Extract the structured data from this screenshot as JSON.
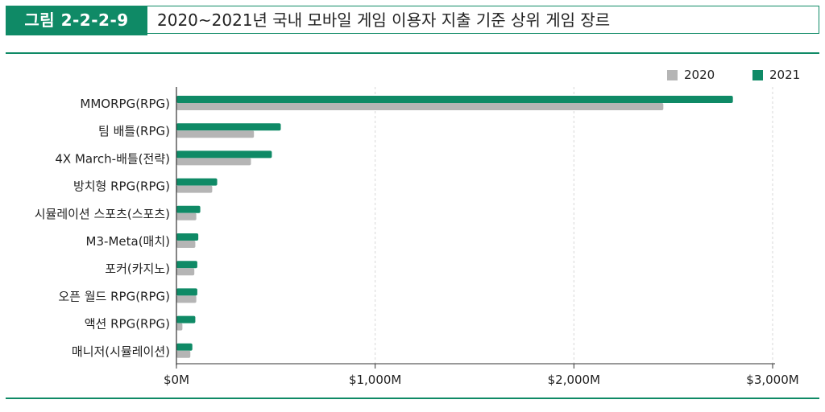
{
  "figure": {
    "tag": "그림 2-2-2-9",
    "title": "2020~2021년 국내 모바일 게임 이용자 지출 기준 상위 게임 장르"
  },
  "colors": {
    "accent": "#0f8a66",
    "s2020": "#b5b5b5",
    "s2021": "#0f8a66"
  },
  "chart_data": {
    "type": "bar",
    "orientation": "horizontal",
    "categories": [
      "MMORPG(RPG)",
      "팀 배틀(RPG)",
      "4X March-배틀(전략)",
      "방치형 RPG(RPG)",
      "시뮬레이션 스포츠(스포츠)",
      "M3-Meta(매치)",
      "포커(카지노)",
      "오픈 월드 RPG(RPG)",
      "액션 RPG(RPG)",
      "매니저(시뮬레이션)"
    ],
    "series": [
      {
        "name": "2020",
        "color": "#b5b5b5",
        "values": [
          2450,
          390,
          375,
          180,
          100,
          95,
          90,
          100,
          30,
          70
        ]
      },
      {
        "name": "2021",
        "color": "#0f8a66",
        "values": [
          2800,
          525,
          480,
          205,
          120,
          110,
          105,
          105,
          95,
          80
        ]
      }
    ],
    "xlim": [
      0,
      3000
    ],
    "xticks": [
      "$0M",
      "$1,000M",
      "$2,000M",
      "$3,000M"
    ],
    "xtick_values": [
      0,
      1000,
      2000,
      3000
    ],
    "legend": "top-right",
    "grid": true
  }
}
